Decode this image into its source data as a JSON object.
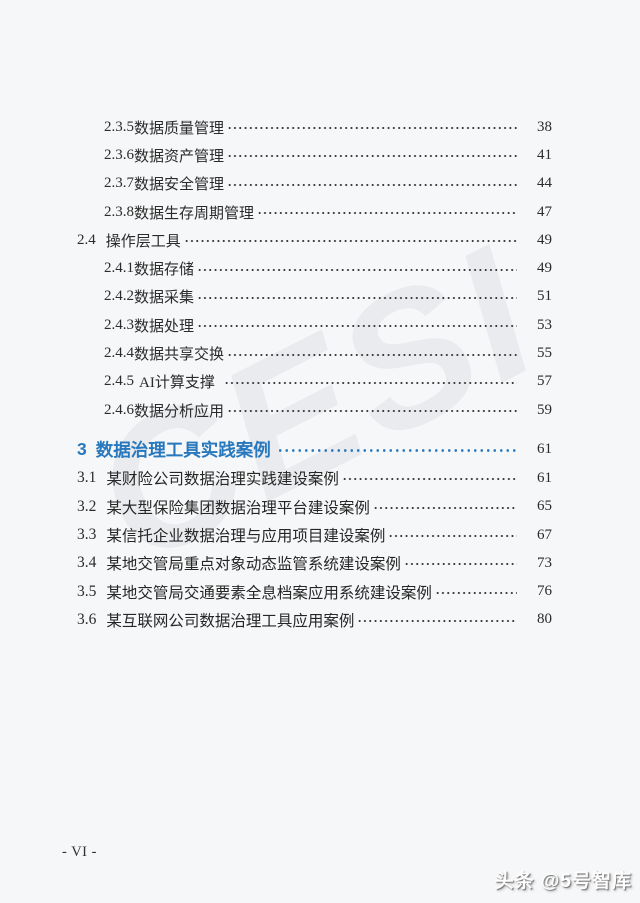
{
  "page": {
    "footer_page_number": "- VI -",
    "watermark_diagonal": "CESI",
    "watermark_bottom": "头条 @5号智库",
    "colors": {
      "background": "#f6f7f8",
      "accent_blue": "#2878be",
      "body_text": "#2b2b2b",
      "watermark_gray": "#e9ebee"
    }
  },
  "toc": {
    "section2_rows": [
      {
        "level": 3,
        "num": "2.3.5",
        "label": "数据质量管理",
        "page": "38"
      },
      {
        "level": 3,
        "num": "2.3.6",
        "label": "数据资产管理",
        "page": "41"
      },
      {
        "level": 3,
        "num": "2.3.7",
        "label": "数据安全管理",
        "page": "44"
      },
      {
        "level": 3,
        "num": "2.3.8",
        "label": "数据生存周期管理",
        "page": "47"
      },
      {
        "level": 2,
        "num": "2.4",
        "label": "操作层工具",
        "page": "49"
      },
      {
        "level": 3,
        "num": "2.4.1",
        "label": "数据存储",
        "page": "49"
      },
      {
        "level": 3,
        "num": "2.4.2",
        "label": "数据采集",
        "page": "51"
      },
      {
        "level": 3,
        "num": "2.4.3",
        "label": "数据处理",
        "page": "53"
      },
      {
        "level": 3,
        "num": "2.4.4",
        "label": "数据共享交换",
        "page": "55"
      },
      {
        "level": 3,
        "num": "2.4.5",
        "label": "AI计算支撑",
        "page": "57",
        "sp": true
      },
      {
        "level": 3,
        "num": "2.4.6",
        "label": "数据分析应用",
        "page": "59"
      }
    ],
    "section3": {
      "heading": {
        "num": "3",
        "label": "数据治理工具实践案例",
        "page": "61"
      },
      "rows": [
        {
          "level": 2,
          "num": "3.1",
          "label": "某财险公司数据治理实践建设案例",
          "page": "61"
        },
        {
          "level": 2,
          "num": "3.2",
          "label": "某大型保险集团数据治理平台建设案例",
          "page": "65"
        },
        {
          "level": 2,
          "num": "3.3",
          "label": "某信托企业数据治理与应用项目建设案例",
          "page": "67"
        },
        {
          "level": 2,
          "num": "3.4",
          "label": "某地交管局重点对象动态监管系统建设案例",
          "page": "73"
        },
        {
          "level": 2,
          "num": "3.5",
          "label": "某地交管局交通要素全息档案应用系统建设案例",
          "page": "76"
        },
        {
          "level": 2,
          "num": "3.6",
          "label": "某互联网公司数据治理工具应用案例",
          "page": "80"
        }
      ]
    }
  }
}
